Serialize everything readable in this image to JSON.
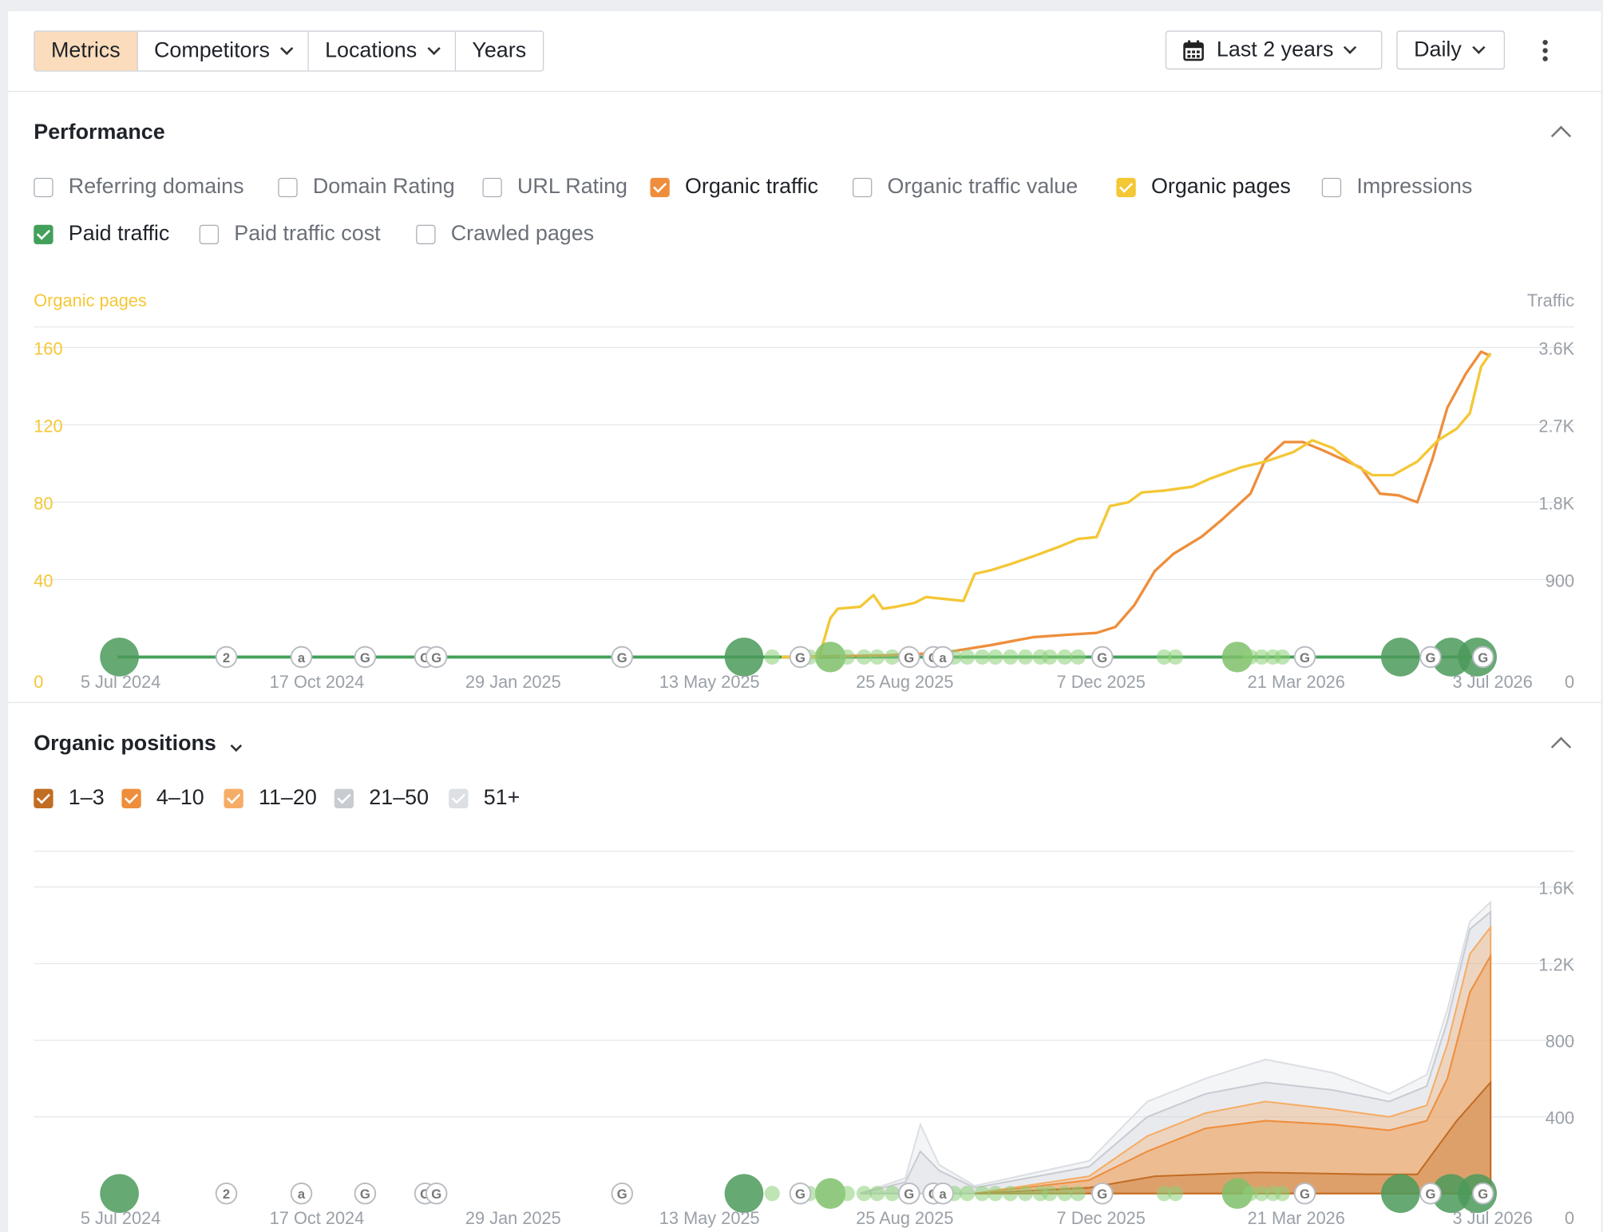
{
  "toolbar": {
    "segments": [
      "Metrics",
      "Competitors",
      "Locations",
      "Years"
    ],
    "date_range": "Last 2 years",
    "interval": "Daily"
  },
  "performance": {
    "title": "Performance",
    "metrics": [
      {
        "label": "Referring domains",
        "checked": false,
        "color": ""
      },
      {
        "label": "Domain Rating",
        "checked": false,
        "color": ""
      },
      {
        "label": "URL Rating",
        "checked": false,
        "color": ""
      },
      {
        "label": "Organic traffic",
        "checked": true,
        "color": "#ee8e3c"
      },
      {
        "label": "Organic traffic value",
        "checked": false,
        "color": ""
      },
      {
        "label": "Organic pages",
        "checked": true,
        "color": "#f4c735"
      },
      {
        "label": "Impressions",
        "checked": false,
        "color": ""
      },
      {
        "label": "Paid traffic",
        "checked": true,
        "color": "#43a05a"
      },
      {
        "label": "Paid traffic cost",
        "checked": false,
        "color": ""
      },
      {
        "label": "Crawled pages",
        "checked": false,
        "color": ""
      }
    ]
  },
  "positions": {
    "title": "Organic positions",
    "ranges": [
      {
        "label": "1–3",
        "color": "#c26d24"
      },
      {
        "label": "4–10",
        "color": "#ee8e3c"
      },
      {
        "label": "11–20",
        "color": "#f5ad66"
      },
      {
        "label": "21–50",
        "color": "#c8ccd2"
      },
      {
        "label": "51+",
        "color": "#dcdfe3"
      }
    ]
  },
  "chart_data": [
    {
      "type": "line",
      "left_axis_label": "Organic pages",
      "right_axis_label": "Traffic",
      "left_ticks": [
        "0",
        "40",
        "80",
        "120",
        "160"
      ],
      "right_ticks": [
        "0",
        "900",
        "1.8K",
        "2.7K",
        "3.6K"
      ],
      "ylim_left": [
        0,
        160
      ],
      "ylim_right": [
        0,
        3600
      ],
      "x_ticks": [
        "5 Jul 2024",
        "17 Oct 2024",
        "29 Jan 2025",
        "13 May 2025",
        "25 Aug 2025",
        "7 Dec 2025",
        "21 Mar 2026",
        "3 Jul 2026"
      ],
      "series": [
        {
          "name": "Organic pages",
          "axis": "left",
          "color": "#f4c735",
          "points": [
            [
              "2025-06-20",
              0
            ],
            [
              "2025-07-10",
              0
            ],
            [
              "2025-07-16",
              20
            ],
            [
              "2025-07-20",
              25
            ],
            [
              "2025-08-01",
              26
            ],
            [
              "2025-08-08",
              32
            ],
            [
              "2025-08-13",
              25
            ],
            [
              "2025-08-20",
              26
            ],
            [
              "2025-08-30",
              28
            ],
            [
              "2025-09-05",
              31
            ],
            [
              "2025-09-15",
              30
            ],
            [
              "2025-09-25",
              29
            ],
            [
              "2025-10-01",
              43
            ],
            [
              "2025-10-10",
              45
            ],
            [
              "2025-10-20",
              48
            ],
            [
              "2025-11-01",
              52
            ],
            [
              "2025-11-15",
              57
            ],
            [
              "2025-11-25",
              61
            ],
            [
              "2025-12-05",
              62
            ],
            [
              "2025-12-12",
              78
            ],
            [
              "2025-12-22",
              80
            ],
            [
              "2025-12-29",
              85
            ],
            [
              "2026-01-10",
              86
            ],
            [
              "2026-01-25",
              88
            ],
            [
              "2026-02-03",
              92
            ],
            [
              "2026-02-20",
              98
            ],
            [
              "2026-03-05",
              101
            ],
            [
              "2026-03-20",
              106
            ],
            [
              "2026-03-30",
              112
            ],
            [
              "2026-04-10",
              108
            ],
            [
              "2026-04-22",
              99
            ],
            [
              "2026-05-01",
              94
            ],
            [
              "2026-05-12",
              94
            ],
            [
              "2026-05-25",
              101
            ],
            [
              "2026-06-05",
              112
            ],
            [
              "2026-06-15",
              118
            ],
            [
              "2026-06-22",
              126
            ],
            [
              "2026-06-28",
              150
            ],
            [
              "2026-07-03",
              157
            ]
          ]
        },
        {
          "name": "Organic traffic",
          "axis": "right",
          "color": "#ee8e3c",
          "points": [
            [
              "2025-06-20",
              0
            ],
            [
              "2025-08-15",
              20
            ],
            [
              "2025-09-05",
              40
            ],
            [
              "2025-09-20",
              70
            ],
            [
              "2025-10-10",
              140
            ],
            [
              "2025-11-01",
              230
            ],
            [
              "2025-11-20",
              260
            ],
            [
              "2025-12-05",
              280
            ],
            [
              "2025-12-15",
              350
            ],
            [
              "2025-12-25",
              600
            ],
            [
              "2026-01-05",
              1000
            ],
            [
              "2026-01-15",
              1200
            ],
            [
              "2026-01-30",
              1400
            ],
            [
              "2026-02-10",
              1600
            ],
            [
              "2026-02-25",
              1900
            ],
            [
              "2026-03-05",
              2300
            ],
            [
              "2026-03-15",
              2500
            ],
            [
              "2026-03-25",
              2500
            ],
            [
              "2026-04-05",
              2400
            ],
            [
              "2026-04-15",
              2300
            ],
            [
              "2026-04-25",
              2200
            ],
            [
              "2026-05-05",
              1900
            ],
            [
              "2026-05-15",
              1880
            ],
            [
              "2026-05-25",
              1800
            ],
            [
              "2026-06-02",
              2300
            ],
            [
              "2026-06-10",
              2900
            ],
            [
              "2026-06-20",
              3300
            ],
            [
              "2026-06-28",
              3550
            ],
            [
              "2026-07-03",
              3500
            ]
          ]
        },
        {
          "name": "Paid traffic",
          "axis": "right",
          "color": "#43a05a",
          "points": [
            [
              "2024-07-01",
              0
            ],
            [
              "2026-07-03",
              0
            ]
          ]
        }
      ],
      "annotations": [
        {
          "date": "2024-07-02",
          "kind": "dot",
          "size": "large"
        },
        {
          "date": "2024-08-28",
          "kind": "label",
          "text": "2"
        },
        {
          "date": "2024-10-07",
          "kind": "label",
          "text": "a"
        },
        {
          "date": "2024-11-10",
          "kind": "label",
          "text": "G"
        },
        {
          "date": "2024-12-12",
          "kind": "label",
          "text": "G"
        },
        {
          "date": "2024-12-18",
          "kind": "label",
          "text": "G"
        },
        {
          "date": "2025-03-27",
          "kind": "label",
          "text": "G"
        },
        {
          "date": "2025-05-31",
          "kind": "dot",
          "size": "large"
        },
        {
          "date": "2025-06-30",
          "kind": "label",
          "text": "G"
        },
        {
          "date": "2025-07-16",
          "kind": "dot",
          "size": "medium"
        },
        {
          "date": "2025-08-27",
          "kind": "label",
          "text": "G"
        },
        {
          "date": "2025-09-09",
          "kind": "label",
          "text": "G"
        },
        {
          "date": "2025-09-14",
          "kind": "label",
          "text": "a"
        },
        {
          "date": "2025-12-08",
          "kind": "label",
          "text": "G"
        },
        {
          "date": "2026-02-18",
          "kind": "dot",
          "size": "medium"
        },
        {
          "date": "2026-03-26",
          "kind": "label",
          "text": "G"
        },
        {
          "date": "2026-05-16",
          "kind": "dot",
          "size": "large"
        },
        {
          "date": "2026-06-01",
          "kind": "label",
          "text": "G"
        },
        {
          "date": "2026-06-12",
          "kind": "dot",
          "size": "large"
        },
        {
          "date": "2026-06-26",
          "kind": "dot",
          "size": "large"
        },
        {
          "date": "2026-06-29",
          "kind": "label",
          "text": "G"
        }
      ]
    },
    {
      "type": "area",
      "right_ticks": [
        "0",
        "400",
        "800",
        "1.2K",
        "1.6K"
      ],
      "ylim": [
        0,
        1600
      ],
      "x_ticks": [
        "5 Jul 2024",
        "17 Oct 2024",
        "29 Jan 2025",
        "13 May 2025",
        "25 Aug 2025",
        "7 Dec 2025",
        "21 Mar 2026",
        "3 Jul 2026"
      ],
      "stacked": true,
      "series": [
        {
          "name": "1–3",
          "color": "#c26d24",
          "points": [
            [
              "2025-10-01",
              0
            ],
            [
              "2025-12-01",
              30
            ],
            [
              "2026-01-05",
              90
            ],
            [
              "2026-03-01",
              110
            ],
            [
              "2026-05-01",
              100
            ],
            [
              "2026-05-25",
              100
            ],
            [
              "2026-06-15",
              380
            ],
            [
              "2026-07-03",
              580
            ]
          ]
        },
        {
          "name": "4–10",
          "color": "#ee8e3c",
          "points": [
            [
              "2025-10-01",
              0
            ],
            [
              "2025-12-01",
              70
            ],
            [
              "2026-01-01",
              220
            ],
            [
              "2026-02-01",
              340
            ],
            [
              "2026-03-05",
              380
            ],
            [
              "2026-04-10",
              360
            ],
            [
              "2026-05-10",
              330
            ],
            [
              "2026-05-30",
              380
            ],
            [
              "2026-06-10",
              600
            ],
            [
              "2026-06-22",
              1050
            ],
            [
              "2026-07-03",
              1240
            ]
          ]
        },
        {
          "name": "11–20",
          "color": "#f5ad66",
          "points": [
            [
              "2025-10-01",
              0
            ],
            [
              "2025-12-01",
              90
            ],
            [
              "2026-01-01",
              300
            ],
            [
              "2026-02-01",
              420
            ],
            [
              "2026-03-05",
              480
            ],
            [
              "2026-04-10",
              440
            ],
            [
              "2026-05-10",
              400
            ],
            [
              "2026-05-30",
              460
            ],
            [
              "2026-06-10",
              780
            ],
            [
              "2026-06-22",
              1250
            ],
            [
              "2026-07-03",
              1390
            ]
          ]
        },
        {
          "name": "21–50",
          "color": "#c8ccd2",
          "points": [
            [
              "2025-08-01",
              0
            ],
            [
              "2025-08-25",
              60
            ],
            [
              "2025-09-02",
              220
            ],
            [
              "2025-09-12",
              120
            ],
            [
              "2025-10-01",
              30
            ],
            [
              "2025-12-01",
              140
            ],
            [
              "2026-01-01",
              400
            ],
            [
              "2026-02-01",
              520
            ],
            [
              "2026-03-05",
              580
            ],
            [
              "2026-04-10",
              540
            ],
            [
              "2026-05-10",
              480
            ],
            [
              "2026-05-30",
              560
            ],
            [
              "2026-06-10",
              900
            ],
            [
              "2026-06-22",
              1380
            ],
            [
              "2026-07-03",
              1470
            ]
          ]
        },
        {
          "name": "51+",
          "color": "#dcdfe3",
          "points": [
            [
              "2025-08-01",
              0
            ],
            [
              "2025-08-25",
              80
            ],
            [
              "2025-09-02",
              360
            ],
            [
              "2025-09-12",
              150
            ],
            [
              "2025-10-01",
              40
            ],
            [
              "2025-12-01",
              170
            ],
            [
              "2026-01-01",
              480
            ],
            [
              "2026-02-01",
              600
            ],
            [
              "2026-03-05",
              700
            ],
            [
              "2026-04-10",
              630
            ],
            [
              "2026-05-10",
              520
            ],
            [
              "2026-05-30",
              620
            ],
            [
              "2026-06-10",
              960
            ],
            [
              "2026-06-22",
              1420
            ],
            [
              "2026-07-03",
              1520
            ]
          ]
        }
      ]
    }
  ]
}
